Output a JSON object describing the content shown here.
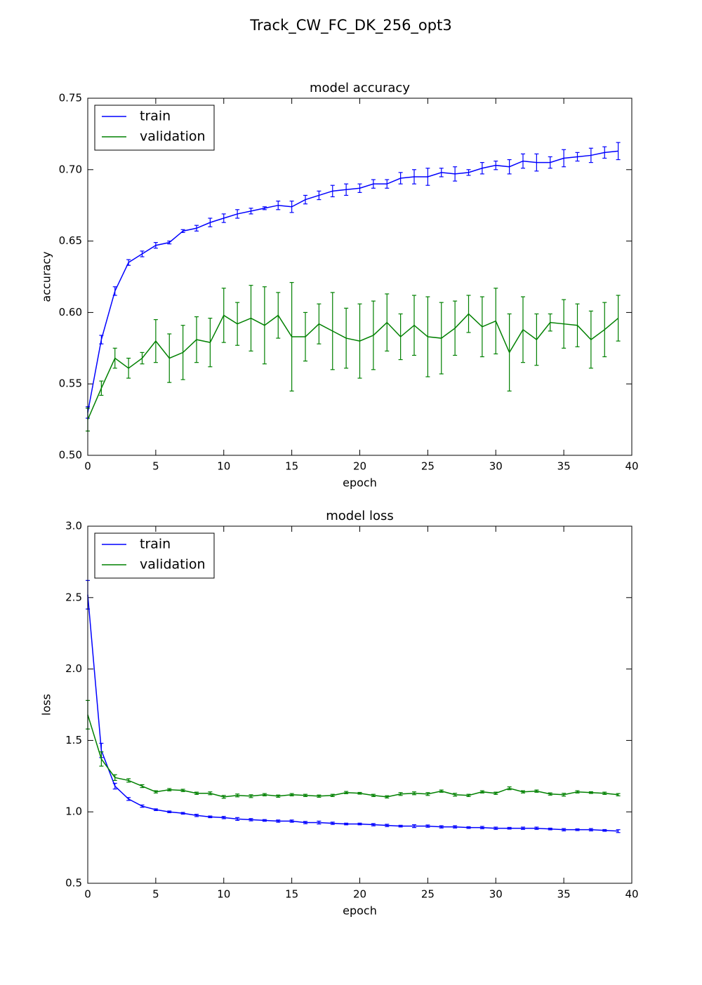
{
  "title": "Track_CW_FC_DK_256_opt3",
  "chart_data": [
    {
      "type": "line",
      "title": "model accuracy",
      "x_label": "epoch",
      "y_label": "accuracy",
      "legend": "upper left",
      "x": [
        0,
        1,
        2,
        3,
        4,
        5,
        6,
        7,
        8,
        9,
        10,
        11,
        12,
        13,
        14,
        15,
        16,
        17,
        18,
        19,
        20,
        21,
        22,
        23,
        24,
        25,
        26,
        27,
        28,
        29,
        30,
        31,
        32,
        33,
        34,
        35,
        36,
        37,
        38,
        39
      ],
      "series": [
        {
          "name": "train",
          "color": "#0000ff",
          "values": [
            0.53,
            0.581,
            0.615,
            0.635,
            0.641,
            0.647,
            0.649,
            0.657,
            0.659,
            0.663,
            0.666,
            0.669,
            0.671,
            0.673,
            0.675,
            0.674,
            0.679,
            0.682,
            0.685,
            0.686,
            0.687,
            0.69,
            0.69,
            0.694,
            0.695,
            0.695,
            0.698,
            0.697,
            0.698,
            0.701,
            0.703,
            0.702,
            0.706,
            0.705,
            0.705,
            0.708,
            0.709,
            0.71,
            0.712,
            0.713
          ],
          "errors": [
            0.004,
            0.003,
            0.003,
            0.002,
            0.002,
            0.002,
            0.001,
            0.001,
            0.002,
            0.003,
            0.003,
            0.003,
            0.002,
            0.001,
            0.003,
            0.004,
            0.003,
            0.003,
            0.004,
            0.004,
            0.003,
            0.003,
            0.003,
            0.004,
            0.005,
            0.006,
            0.003,
            0.005,
            0.002,
            0.004,
            0.003,
            0.005,
            0.005,
            0.006,
            0.004,
            0.006,
            0.003,
            0.005,
            0.004,
            0.006
          ]
        },
        {
          "name": "validation",
          "color": "#008000",
          "values": [
            0.525,
            0.547,
            0.568,
            0.561,
            0.568,
            0.58,
            0.568,
            0.572,
            0.581,
            0.579,
            0.598,
            0.592,
            0.596,
            0.591,
            0.598,
            0.583,
            0.583,
            0.592,
            0.587,
            0.582,
            0.58,
            0.584,
            0.593,
            0.583,
            0.591,
            0.583,
            0.582,
            0.589,
            0.599,
            0.59,
            0.594,
            0.572,
            0.588,
            0.581,
            0.593,
            0.592,
            0.591,
            0.581,
            0.588,
            0.596
          ],
          "errors": [
            0.008,
            0.005,
            0.007,
            0.007,
            0.004,
            0.015,
            0.017,
            0.019,
            0.016,
            0.017,
            0.019,
            0.015,
            0.023,
            0.027,
            0.016,
            0.038,
            0.017,
            0.014,
            0.027,
            0.021,
            0.026,
            0.024,
            0.02,
            0.016,
            0.021,
            0.028,
            0.025,
            0.019,
            0.013,
            0.021,
            0.023,
            0.027,
            0.023,
            0.018,
            0.006,
            0.017,
            0.015,
            0.02,
            0.019,
            0.016
          ]
        }
      ],
      "xlim": [
        0,
        40
      ],
      "ylim": [
        0.5,
        0.75
      ],
      "xticks": [
        0,
        5,
        10,
        15,
        20,
        25,
        30,
        35,
        40
      ],
      "yticks": [
        {
          "value": 0.5,
          "label": "0.50"
        },
        {
          "value": 0.55,
          "label": "0.55"
        },
        {
          "value": 0.6,
          "label": "0.60"
        },
        {
          "value": 0.65,
          "label": "0.65"
        },
        {
          "value": 0.7,
          "label": "0.70"
        },
        {
          "value": 0.75,
          "label": "0.75"
        }
      ]
    },
    {
      "type": "line",
      "title": "model loss",
      "x_label": "epoch",
      "y_label": "loss",
      "legend": "upper left",
      "x": [
        0,
        1,
        2,
        3,
        4,
        5,
        6,
        7,
        8,
        9,
        10,
        11,
        12,
        13,
        14,
        15,
        16,
        17,
        18,
        19,
        20,
        21,
        22,
        23,
        24,
        25,
        26,
        27,
        28,
        29,
        30,
        31,
        32,
        33,
        34,
        35,
        36,
        37,
        38,
        39
      ],
      "series": [
        {
          "name": "train",
          "color": "#0000ff",
          "values": [
            2.52,
            1.43,
            1.18,
            1.09,
            1.04,
            1.015,
            1.0,
            0.99,
            0.975,
            0.965,
            0.96,
            0.95,
            0.945,
            0.94,
            0.935,
            0.935,
            0.925,
            0.925,
            0.92,
            0.915,
            0.915,
            0.91,
            0.905,
            0.9,
            0.9,
            0.9,
            0.895,
            0.895,
            0.89,
            0.89,
            0.885,
            0.885,
            0.885,
            0.885,
            0.88,
            0.875,
            0.875,
            0.875,
            0.87,
            0.865
          ],
          "errors": [
            0.1,
            0.05,
            0.02,
            0.01,
            0.008,
            0.006,
            0.006,
            0.006,
            0.008,
            0.006,
            0.008,
            0.01,
            0.008,
            0.006,
            0.008,
            0.008,
            0.008,
            0.01,
            0.008,
            0.006,
            0.006,
            0.008,
            0.008,
            0.006,
            0.01,
            0.008,
            0.008,
            0.008,
            0.006,
            0.008,
            0.008,
            0.006,
            0.008,
            0.008,
            0.006,
            0.008,
            0.006,
            0.008,
            0.006,
            0.01
          ]
        },
        {
          "name": "validation",
          "color": "#008000",
          "values": [
            1.68,
            1.37,
            1.24,
            1.22,
            1.18,
            1.14,
            1.155,
            1.15,
            1.13,
            1.13,
            1.105,
            1.115,
            1.11,
            1.12,
            1.11,
            1.12,
            1.115,
            1.11,
            1.115,
            1.135,
            1.13,
            1.115,
            1.105,
            1.125,
            1.13,
            1.125,
            1.145,
            1.12,
            1.115,
            1.14,
            1.13,
            1.165,
            1.14,
            1.145,
            1.125,
            1.12,
            1.14,
            1.135,
            1.13,
            1.12
          ],
          "errors": [
            0.1,
            0.05,
            0.02,
            0.012,
            0.01,
            0.008,
            0.008,
            0.008,
            0.008,
            0.01,
            0.01,
            0.01,
            0.01,
            0.008,
            0.008,
            0.008,
            0.008,
            0.008,
            0.008,
            0.008,
            0.006,
            0.008,
            0.008,
            0.01,
            0.01,
            0.01,
            0.008,
            0.01,
            0.008,
            0.008,
            0.008,
            0.01,
            0.008,
            0.008,
            0.008,
            0.01,
            0.008,
            0.006,
            0.008,
            0.008
          ]
        }
      ],
      "xlim": [
        0,
        40
      ],
      "ylim": [
        0.5,
        3.0
      ],
      "xticks": [
        0,
        5,
        10,
        15,
        20,
        25,
        30,
        35,
        40
      ],
      "yticks": [
        {
          "value": 0.5,
          "label": "0.5"
        },
        {
          "value": 1,
          "label": "1.0"
        },
        {
          "value": 1.5,
          "label": "1.5"
        },
        {
          "value": 2,
          "label": "2.0"
        },
        {
          "value": 2.5,
          "label": "2.5"
        },
        {
          "value": 3,
          "label": "3.0"
        }
      ]
    }
  ]
}
